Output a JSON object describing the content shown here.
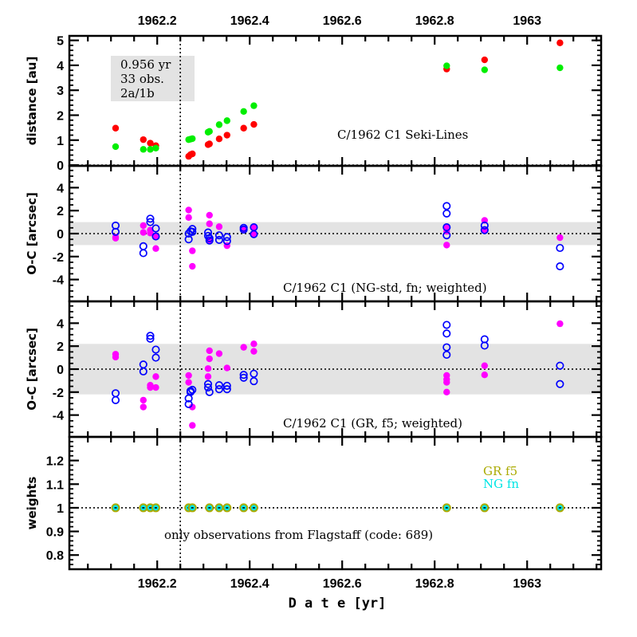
{
  "chart_data": [
    {
      "type": "scatter",
      "panel": "distance",
      "ylabel": "distance [au]",
      "ylim": [
        0,
        5
      ],
      "yticks": [
        "0",
        "1",
        "2",
        "3",
        "4",
        "5"
      ],
      "annotation": "C/1962 C1 Seki-Lines",
      "info_box": [
        "0.956 yr",
        "33 obs.",
        "2a/1b"
      ],
      "series": [
        {
          "name": "red",
          "color": "#ff0000",
          "x": [
            1962.11,
            1962.17,
            1962.185,
            1962.197,
            1962.268,
            1962.272,
            1962.276,
            1962.31,
            1962.313,
            1962.334,
            1962.351,
            1962.387,
            1962.409,
            1962.826,
            1962.908,
            1963.071
          ],
          "y": [
            1.48,
            1.02,
            0.88,
            0.78,
            0.35,
            0.42,
            0.45,
            0.82,
            0.85,
            1.05,
            1.2,
            1.48,
            1.63,
            3.85,
            4.22,
            4.9
          ]
        },
        {
          "name": "green",
          "color": "#00ee00",
          "x": [
            1962.11,
            1962.17,
            1962.185,
            1962.197,
            1962.268,
            1962.272,
            1962.276,
            1962.31,
            1962.313,
            1962.334,
            1962.351,
            1962.387,
            1962.409,
            1962.826,
            1962.908,
            1963.071
          ],
          "y": [
            0.74,
            0.63,
            0.63,
            0.68,
            1.02,
            1.04,
            1.06,
            1.32,
            1.35,
            1.62,
            1.78,
            2.15,
            2.38,
            3.98,
            3.82,
            3.9
          ]
        }
      ]
    },
    {
      "type": "scatter",
      "panel": "oc-ng",
      "ylabel": "O-C [arcsec]",
      "ylim": [
        -5.8,
        5.8
      ],
      "yticks": [
        "-4",
        "-2",
        "0",
        "2",
        "4"
      ],
      "band": [
        -1.0,
        1.0
      ],
      "annotation": "C/1962 C1  (NG-std, fn; weighted)",
      "series": [
        {
          "name": "magenta-filled",
          "color": "#ff00ff",
          "x": [
            1962.11,
            1962.11,
            1962.17,
            1962.17,
            1962.185,
            1962.185,
            1962.197,
            1962.197,
            1962.268,
            1962.268,
            1962.276,
            1962.276,
            1962.313,
            1962.313,
            1962.313,
            1962.334,
            1962.351,
            1962.387,
            1962.409,
            1962.409,
            1962.826,
            1962.826,
            1962.826,
            1962.908,
            1962.908,
            1963.071
          ],
          "y": [
            -0.3,
            -0.4,
            0.7,
            0.1,
            0.3,
            0.05,
            -0.3,
            -1.3,
            2.05,
            1.4,
            -1.5,
            -2.85,
            1.6,
            0.85,
            -0.6,
            0.6,
            -1.05,
            0.4,
            0.5,
            -0.05,
            0.5,
            0.2,
            -1.0,
            1.15,
            0.3,
            -0.35
          ]
        },
        {
          "name": "blue-open",
          "color": "#0000ff",
          "x": [
            1962.11,
            1962.11,
            1962.17,
            1962.17,
            1962.185,
            1962.185,
            1962.197,
            1962.197,
            1962.268,
            1962.268,
            1962.272,
            1962.276,
            1962.276,
            1962.31,
            1962.31,
            1962.313,
            1962.313,
            1962.334,
            1962.334,
            1962.351,
            1962.351,
            1962.387,
            1962.387,
            1962.409,
            1962.409,
            1962.826,
            1962.826,
            1962.826,
            1962.826,
            1962.908,
            1962.908,
            1963.071,
            1963.071
          ],
          "y": [
            0.7,
            0.15,
            -1.1,
            -1.7,
            1.3,
            1.0,
            0.45,
            -0.25,
            0.0,
            -0.5,
            0.2,
            0.4,
            0.15,
            0.1,
            -0.2,
            -0.4,
            -0.6,
            -0.15,
            -0.55,
            -0.3,
            -0.65,
            0.5,
            0.35,
            0.55,
            -0.05,
            2.4,
            1.75,
            0.55,
            -0.15,
            0.7,
            0.3,
            -1.25,
            -2.85
          ]
        }
      ]
    },
    {
      "type": "scatter",
      "panel": "oc-gr",
      "ylabel": "O-C [arcsec]",
      "ylim": [
        -5.8,
        5.8
      ],
      "yticks": [
        "-4",
        "-2",
        "0",
        "2",
        "4"
      ],
      "band": [
        -2.2,
        2.2
      ],
      "annotation": "C/1962 C1  (GR, f5; weighted)",
      "series": [
        {
          "name": "magenta-filled",
          "color": "#ff00ff",
          "x": [
            1962.11,
            1962.11,
            1962.17,
            1962.17,
            1962.185,
            1962.185,
            1962.197,
            1962.197,
            1962.268,
            1962.268,
            1962.276,
            1962.276,
            1962.31,
            1962.31,
            1962.313,
            1962.313,
            1962.334,
            1962.351,
            1962.387,
            1962.409,
            1962.409,
            1962.826,
            1962.826,
            1962.826,
            1962.826,
            1962.908,
            1962.908,
            1963.071
          ],
          "y": [
            1.3,
            1.05,
            -2.7,
            -3.3,
            -1.4,
            -1.6,
            -0.65,
            -1.6,
            -0.55,
            -1.15,
            -3.3,
            -4.9,
            0.05,
            -0.65,
            1.6,
            0.9,
            1.35,
            0.1,
            1.9,
            2.2,
            1.55,
            -0.55,
            -0.9,
            -1.15,
            -2.0,
            0.3,
            -0.5,
            3.95
          ]
        },
        {
          "name": "blue-open",
          "color": "#0000ff",
          "x": [
            1962.11,
            1962.11,
            1962.17,
            1962.17,
            1962.185,
            1962.185,
            1962.197,
            1962.197,
            1962.268,
            1962.268,
            1962.272,
            1962.272,
            1962.276,
            1962.31,
            1962.31,
            1962.313,
            1962.334,
            1962.334,
            1962.351,
            1962.351,
            1962.387,
            1962.387,
            1962.409,
            1962.409,
            1962.826,
            1962.826,
            1962.826,
            1962.826,
            1962.908,
            1962.908,
            1963.071,
            1963.071
          ],
          "y": [
            -2.1,
            -2.7,
            0.4,
            -0.2,
            2.9,
            2.65,
            1.7,
            1.0,
            -2.55,
            -3.05,
            -2.0,
            -1.9,
            -1.8,
            -1.3,
            -1.6,
            -2.0,
            -1.4,
            -1.75,
            -1.45,
            -1.75,
            -0.5,
            -0.75,
            -0.4,
            -1.05,
            3.85,
            3.1,
            1.9,
            1.25,
            2.6,
            2.05,
            0.3,
            -1.3
          ]
        }
      ]
    },
    {
      "type": "scatter",
      "panel": "weights",
      "ylabel": "weights",
      "ylim": [
        0.75,
        1.3
      ],
      "yticks": [
        "0.8",
        "0.9",
        "1",
        "1.1",
        "1.2"
      ],
      "annotation": "only observations from Flagstaff (code: 689)",
      "legend": [
        {
          "label": "GR f5",
          "color": "#aaaa00"
        },
        {
          "label": "NG fn",
          "color": "#00e5e5"
        }
      ],
      "x": [
        1962.11,
        1962.17,
        1962.185,
        1962.197,
        1962.268,
        1962.276,
        1962.313,
        1962.334,
        1962.351,
        1962.387,
        1962.409,
        1962.826,
        1962.908,
        1963.071
      ],
      "y": [
        1,
        1,
        1,
        1,
        1,
        1,
        1,
        1,
        1,
        1,
        1,
        1,
        1,
        1
      ]
    }
  ],
  "x_axis": {
    "xlabel": "D a t e [yr]",
    "xlim": [
      1962.01,
      1963.16
    ],
    "major_ticks": [
      1962.2,
      1962.4,
      1962.6,
      1962.8,
      1963.0
    ],
    "tick_labels": [
      "1962.2",
      "1962.4",
      "1962.6",
      "1962.8",
      "1963"
    ],
    "vertical_marker": 1962.25
  }
}
